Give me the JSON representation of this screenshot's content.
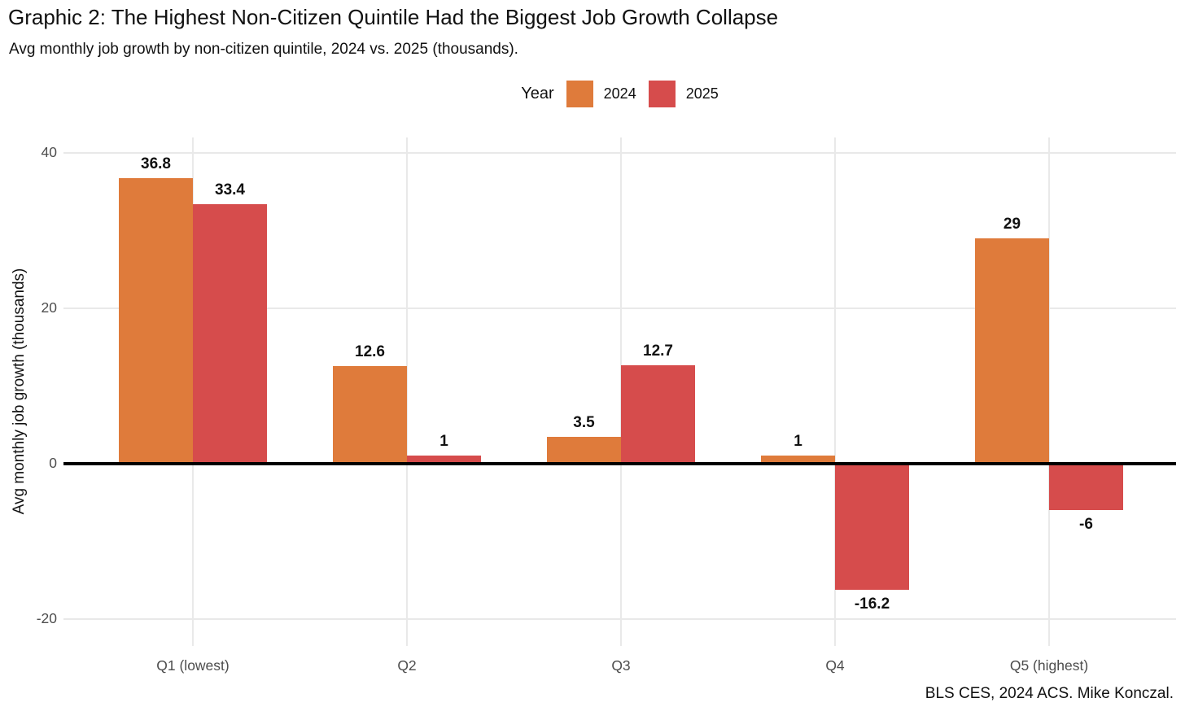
{
  "title": "Graphic 2: The Highest Non-Citizen Quintile Had the Biggest Job Growth Collapse",
  "subtitle": "Avg monthly job growth by non-citizen quintile, 2024 vs. 2025 (thousands).",
  "caption": "BLS CES, 2024 ACS. Mike Konczal.",
  "legend": {
    "title": "Year",
    "entries": [
      {
        "label": "2024",
        "color": "#df7b3b"
      },
      {
        "label": "2025",
        "color": "#d64c4c"
      }
    ]
  },
  "y_axis": {
    "label": "Avg monthly job growth (thousands)",
    "ticks": [
      40,
      20,
      0,
      -20
    ]
  },
  "chart_data": {
    "type": "bar",
    "title": "Graphic 2: The Highest Non-Citizen Quintile Had the Biggest Job Growth Collapse",
    "subtitle": "Avg monthly job growth by non-citizen quintile, 2024 vs. 2025 (thousands).",
    "caption": "BLS CES, 2024 ACS. Mike Konczal.",
    "categories": [
      "Q1 (lowest)",
      "Q2",
      "Q3",
      "Q4",
      "Q5 (highest)"
    ],
    "series": [
      {
        "name": "2024",
        "color": "#df7b3b",
        "values": [
          36.8,
          12.6,
          3.5,
          1,
          29
        ],
        "labels": [
          "36.8",
          "12.6",
          "3.5",
          "1",
          "29"
        ]
      },
      {
        "name": "2025",
        "color": "#d64c4c",
        "values": [
          33.4,
          1,
          12.7,
          -16.2,
          -6
        ],
        "labels": [
          "33.4",
          "1",
          "12.7",
          "-16.2",
          "-6"
        ]
      }
    ],
    "xlabel": "",
    "ylabel": "Avg monthly job growth (thousands)",
    "ylim": [
      -23.5,
      42
    ],
    "yticks": [
      40,
      20,
      0,
      -20
    ],
    "grid": true,
    "zero_line": true,
    "legend_title": "Year",
    "legend_position": "top-center",
    "gridline_color": "#e9e9e9",
    "tick_text_color": "#4d4d4d"
  }
}
